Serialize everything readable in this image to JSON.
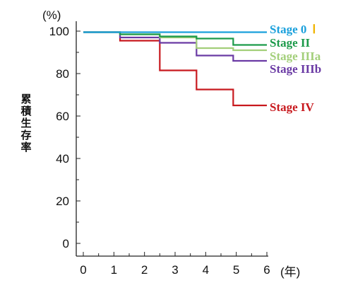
{
  "chart_data": {
    "type": "line",
    "step": true,
    "xlabel": "(年)",
    "ylabel": "累積生存率",
    "y_unit": "(%)",
    "xlim": [
      0,
      6
    ],
    "ylim": [
      0,
      100
    ],
    "x_ticks": [
      0,
      1,
      2,
      3,
      4,
      5,
      6
    ],
    "y_ticks": [
      0,
      20,
      40,
      60,
      80,
      100
    ],
    "x_minor_step": 0.5,
    "y_minor_step": 10,
    "grid": false,
    "legend": "right, labels next to line ends",
    "series": [
      {
        "name": "Stage 0",
        "name_suffix": "Ⅰ",
        "color": "#1aa0dc",
        "suffix_color": "#f0b400",
        "x": [
          0,
          6
        ],
        "y": [
          99.5,
          99.5
        ]
      },
      {
        "name": "Stage II",
        "color": "#1c9a4a",
        "x": [
          0,
          1.2,
          2.5,
          3.7,
          4.9,
          6
        ],
        "y": [
          99.5,
          98.5,
          97.5,
          96.5,
          93.5,
          93.5
        ]
      },
      {
        "name": "Stage IIIa",
        "color": "#a3cf7a",
        "x": [
          0,
          1.2,
          2.5,
          3.7,
          4.9,
          6
        ],
        "y": [
          99.5,
          98.5,
          97.0,
          92.0,
          91.0,
          91.0
        ]
      },
      {
        "name": "Stage IIIb",
        "color": "#6a3aa4",
        "x": [
          0,
          1.2,
          2.5,
          3.7,
          4.9,
          6
        ],
        "y": [
          99.5,
          97.0,
          94.5,
          88.5,
          86.0,
          86.0
        ]
      },
      {
        "name": "Stage IV",
        "color": "#c8191e",
        "x": [
          0,
          1.2,
          2.5,
          3.7,
          4.9,
          6
        ],
        "y": [
          99.5,
          95.5,
          81.5,
          72.5,
          65.0,
          65.0
        ]
      }
    ]
  }
}
